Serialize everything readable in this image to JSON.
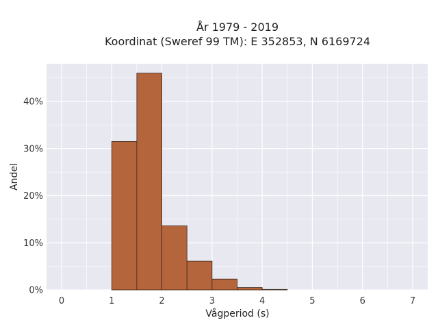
{
  "chart_data": {
    "type": "bar",
    "title_line1": "År 1979 - 2019",
    "title_line2": "Koordinat (Sweref 99 TM): E 352853, N 6169724",
    "xlabel": "Vågperiod (s)",
    "ylabel": "Andel",
    "xlim": [
      -0.3,
      7.3
    ],
    "ylim": [
      0,
      48
    ],
    "x_ticks": [
      0,
      1,
      2,
      3,
      4,
      5,
      6,
      7
    ],
    "x_tick_labels": [
      "0",
      "1",
      "2",
      "3",
      "4",
      "5",
      "6",
      "7"
    ],
    "y_ticks": [
      0,
      10,
      20,
      30,
      40
    ],
    "y_tick_labels": [
      "0%",
      "10%",
      "20%",
      "30%",
      "40%"
    ],
    "bin_width": 0.5,
    "bins": [
      {
        "x0": 1.0,
        "x1": 1.5,
        "value": 31.5
      },
      {
        "x0": 1.5,
        "x1": 2.0,
        "value": 46.0
      },
      {
        "x0": 2.0,
        "x1": 2.5,
        "value": 13.6
      },
      {
        "x0": 2.5,
        "x1": 3.0,
        "value": 6.1
      },
      {
        "x0": 3.0,
        "x1": 3.5,
        "value": 2.3
      },
      {
        "x0": 3.5,
        "x1": 4.0,
        "value": 0.5
      },
      {
        "x0": 4.0,
        "x1": 4.5,
        "value": 0.1
      }
    ],
    "grid": true,
    "colors": {
      "bar_fill": "#b5653b",
      "bar_stroke": "#3a2418",
      "plot_bg": "#e8e8f1",
      "grid": "#ffffff"
    }
  }
}
